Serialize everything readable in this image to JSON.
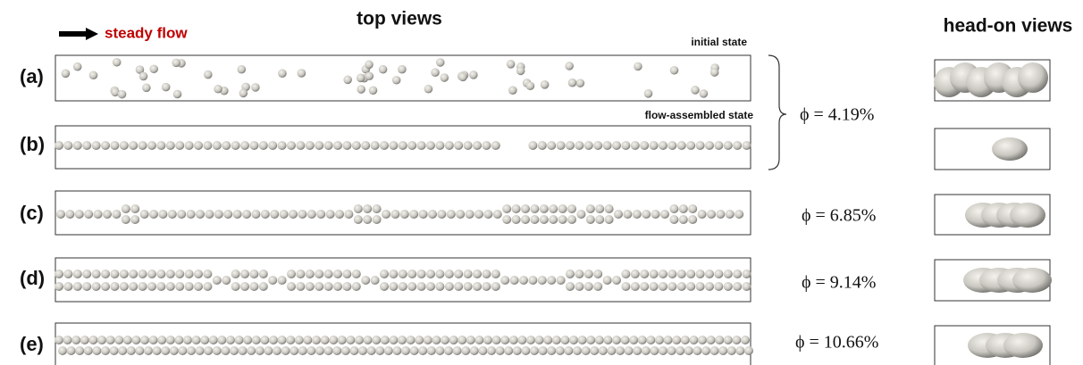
{
  "header": {
    "arrow_label": "steady flow",
    "top_views": "top views",
    "head_on_views": "head-on views"
  },
  "panels": [
    {
      "label": "(a)",
      "state": "initial state"
    },
    {
      "label": "(b)",
      "state": "flow-assembled state"
    },
    {
      "label": "(c)"
    },
    {
      "label": "(d)"
    },
    {
      "label": "(e)"
    }
  ],
  "phi": [
    "ϕ = 4.19%",
    "ϕ = 6.85%",
    "ϕ = 9.14%",
    "ϕ = 10.66%"
  ]
}
